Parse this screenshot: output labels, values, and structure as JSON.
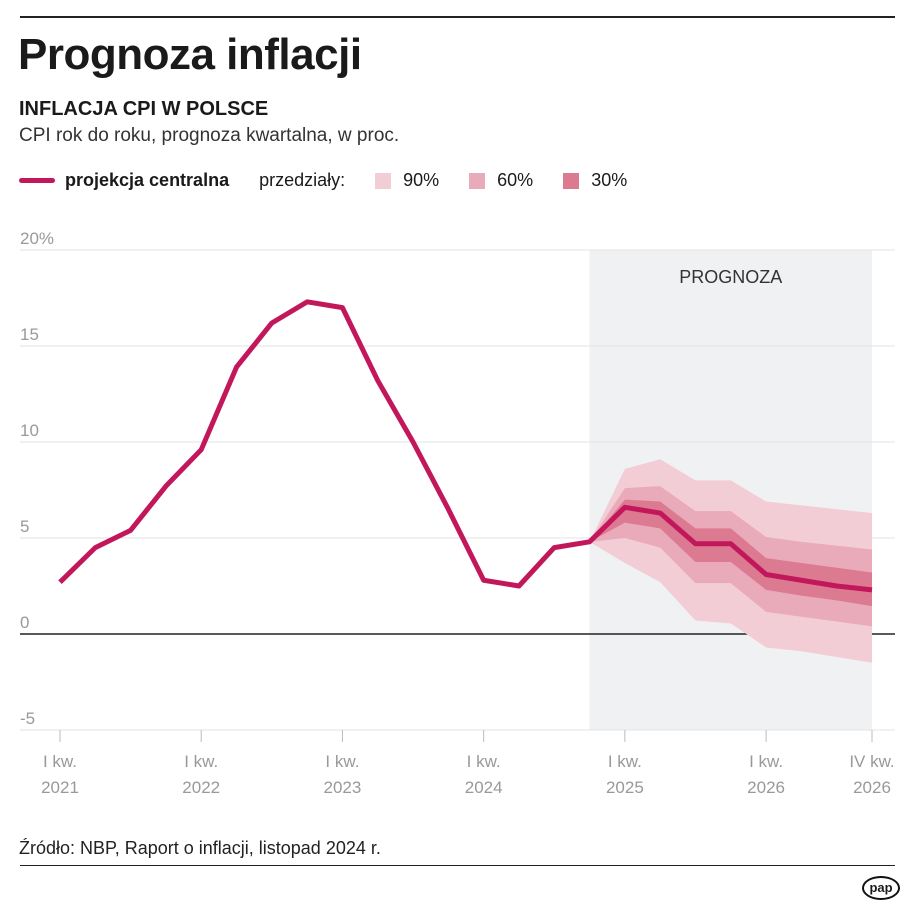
{
  "title": "Prognoza inflacji",
  "subtitle": "INFLACJA CPI W POLSCE",
  "description": "CPI rok do roku, prognoza kwartalna, w proc.",
  "legend": {
    "central": "projekcja centralna",
    "intervals_label": "przedziały:",
    "i90": "90%",
    "i60": "60%",
    "i30": "30%"
  },
  "source": "Źródło: NBP, Raport o inflacji, listopad 2024 r.",
  "logo": "pap",
  "colors": {
    "line": "#c2185b",
    "band90": "#f3cdd6",
    "band60": "#e9aab9",
    "band30": "#dc7a92",
    "forecast_bg": "#f0f1f3"
  },
  "chart_data": {
    "type": "line",
    "ylim": [
      -5,
      20
    ],
    "yticks": [
      "20%",
      "15",
      "10",
      "5",
      "0",
      "-5"
    ],
    "ytick_values": [
      20,
      15,
      10,
      5,
      0,
      -5
    ],
    "forecast_label": "PROGNOZA",
    "forecast_start": "IV kw. 2024",
    "x": [
      "I 2021",
      "II 2021",
      "III 2021",
      "IV 2021",
      "I 2022",
      "II 2022",
      "III 2022",
      "IV 2022",
      "I 2023",
      "II 2023",
      "III 2023",
      "IV 2023",
      "I 2024",
      "II 2024",
      "III 2024",
      "IV 2024",
      "I 2025",
      "II 2025",
      "III 2025",
      "IV 2025",
      "I 2026",
      "II 2026",
      "III 2026",
      "IV 2026"
    ],
    "xticks": [
      {
        "i": 0,
        "l1": "I kw.",
        "l2": "2021"
      },
      {
        "i": 4,
        "l1": "I kw.",
        "l2": "2022"
      },
      {
        "i": 8,
        "l1": "I kw.",
        "l2": "2023"
      },
      {
        "i": 12,
        "l1": "I kw.",
        "l2": "2024"
      },
      {
        "i": 16,
        "l1": "I kw.",
        "l2": "2025"
      },
      {
        "i": 20,
        "l1": "I kw.",
        "l2": "2026"
      },
      {
        "i": 23,
        "l1": "IV kw.",
        "l2": "2026"
      }
    ],
    "central": [
      2.7,
      4.5,
      5.4,
      7.7,
      9.6,
      13.9,
      16.2,
      17.3,
      17.0,
      13.2,
      10.0,
      6.5,
      2.8,
      2.5,
      4.5,
      4.8,
      6.6,
      6.3,
      4.7,
      4.7,
      3.1,
      2.8,
      2.5,
      2.3
    ],
    "bands": {
      "start_index": 15,
      "u90": [
        4.8,
        8.6,
        9.1,
        8.0,
        8.0,
        6.9,
        6.7,
        6.5,
        6.3
      ],
      "l90": [
        4.8,
        3.7,
        2.7,
        0.7,
        0.55,
        -0.7,
        -0.9,
        -1.2,
        -1.5
      ],
      "u60": [
        4.8,
        7.6,
        7.7,
        6.4,
        6.4,
        5.05,
        4.8,
        4.6,
        4.4
      ],
      "l60": [
        4.8,
        5.0,
        4.5,
        2.65,
        2.65,
        1.15,
        0.9,
        0.65,
        0.4
      ],
      "u30": [
        4.8,
        7.0,
        6.9,
        5.5,
        5.5,
        3.95,
        3.7,
        3.45,
        3.2
      ],
      "l30": [
        4.8,
        5.8,
        5.5,
        3.75,
        3.75,
        2.3,
        2.0,
        1.75,
        1.45
      ]
    }
  }
}
